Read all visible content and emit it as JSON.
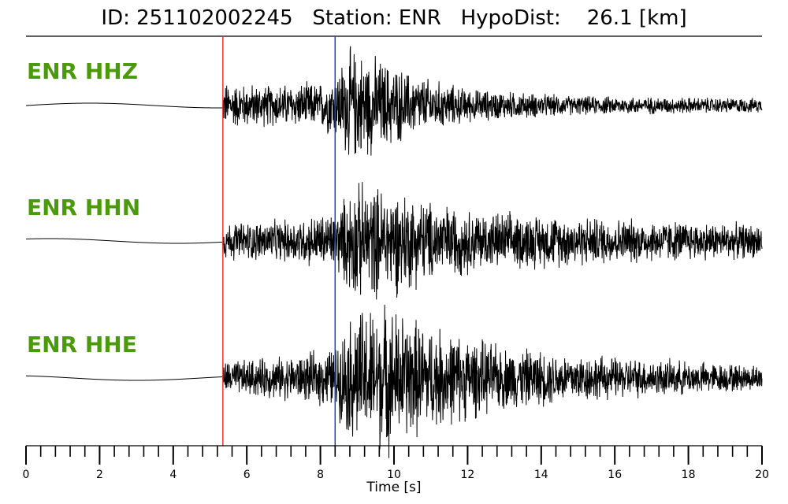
{
  "chart_data": {
    "type": "line",
    "title": "ID: 251102002245   Station: ENR   HypoDist:    26.1 [km]",
    "xlabel": "Time [s]",
    "xlim": [
      0,
      20
    ],
    "x_major_ticks": [
      0,
      2,
      4,
      6,
      8,
      10,
      12,
      14,
      16,
      18,
      20
    ],
    "x_minor_tick_step": 0.4,
    "grid": false,
    "label_color": "#4a9a0a",
    "p_pick": {
      "time": 5.35,
      "color": "#e8322a"
    },
    "s_pick": {
      "time": 8.4,
      "color": "#2b3fb0"
    },
    "series": [
      {
        "name": "ENR HHZ",
        "color": "#000000",
        "envelope": [
          [
            0,
            0.02
          ],
          [
            5.3,
            0.03
          ],
          [
            5.4,
            0.22
          ],
          [
            6.5,
            0.2
          ],
          [
            8.0,
            0.22
          ],
          [
            8.4,
            0.32
          ],
          [
            8.8,
            0.55
          ],
          [
            9.6,
            0.45
          ],
          [
            10.5,
            0.3
          ],
          [
            12,
            0.16
          ],
          [
            15,
            0.09
          ],
          [
            20,
            0.07
          ]
        ]
      },
      {
        "name": "ENR HHN",
        "color": "#000000",
        "envelope": [
          [
            0,
            0.02
          ],
          [
            5.3,
            0.03
          ],
          [
            5.4,
            0.18
          ],
          [
            7,
            0.2
          ],
          [
            8.4,
            0.28
          ],
          [
            8.9,
            0.55
          ],
          [
            10,
            0.52
          ],
          [
            11,
            0.38
          ],
          [
            12.5,
            0.28
          ],
          [
            16,
            0.22
          ],
          [
            20,
            0.16
          ]
        ]
      },
      {
        "name": "ENR HHE",
        "color": "#000000",
        "envelope": [
          [
            0,
            0.02
          ],
          [
            5.3,
            0.03
          ],
          [
            5.4,
            0.16
          ],
          [
            7.5,
            0.22
          ],
          [
            8.4,
            0.3
          ],
          [
            8.9,
            0.65
          ],
          [
            9.8,
            0.7
          ],
          [
            11,
            0.5
          ],
          [
            13,
            0.3
          ],
          [
            16,
            0.2
          ],
          [
            20,
            0.12
          ]
        ]
      }
    ]
  }
}
